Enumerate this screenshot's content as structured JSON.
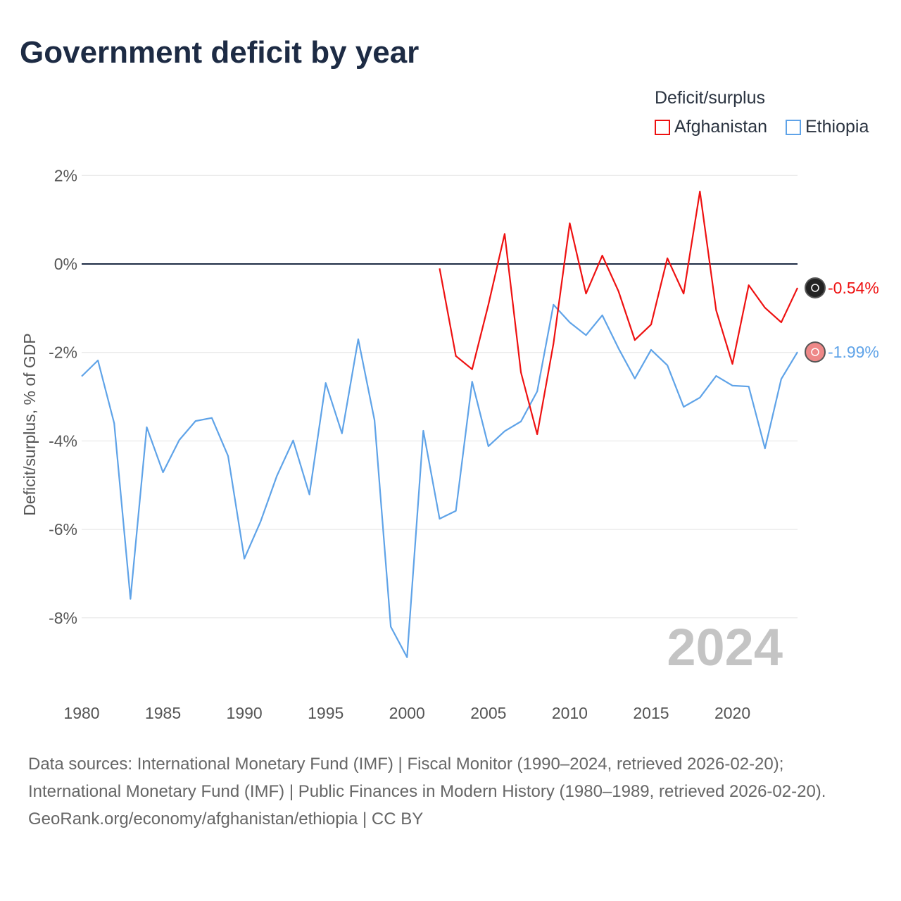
{
  "title": "Government deficit by year",
  "legend": {
    "title": "Deficit/surplus",
    "items": [
      {
        "label": "Afghanistan",
        "color": "#ee1111"
      },
      {
        "label": "Ethiopia",
        "color": "#5fa3e8"
      }
    ]
  },
  "footer": {
    "sources": "Data sources: International Monetary Fund (IMF) | Fiscal Monitor (1990–2024, retrieved 2026-02-20); International Monetary Fund (IMF) | Public Finances in Modern History (1980–1989, retrieved 2026-02-20).",
    "credit": "GeoRank.org/economy/afghanistan/ethiopia | CC BY"
  },
  "chart_data": {
    "type": "line",
    "title": "Government deficit by year",
    "ylabel": "Deficit/surplus, % of GDP",
    "xlabel": "",
    "xlim": [
      1980,
      2024
    ],
    "ylim": [
      -9.5,
      2.2
    ],
    "xticks": [
      1980,
      1985,
      1990,
      1995,
      2000,
      2005,
      2010,
      2015,
      2020
    ],
    "yticks": [
      2,
      0,
      -2,
      -4,
      -6,
      -8
    ],
    "ytick_labels": [
      "2%",
      "0%",
      "-2%",
      "-4%",
      "-6%",
      "-8%"
    ],
    "year_watermark": "2024",
    "series": [
      {
        "name": "Afghanistan",
        "color": "#ee1111",
        "end_label": "-0.54%",
        "x": [
          2002,
          2003,
          2004,
          2005,
          2006,
          2007,
          2008,
          2009,
          2010,
          2011,
          2012,
          2013,
          2014,
          2015,
          2016,
          2017,
          2018,
          2019,
          2020,
          2021,
          2022,
          2023,
          2024
        ],
        "values": [
          -0.1,
          -2.08,
          -2.38,
          -0.92,
          0.68,
          -2.45,
          -3.85,
          -1.8,
          0.92,
          -0.67,
          0.19,
          -0.62,
          -1.72,
          -1.37,
          0.13,
          -0.67,
          1.64,
          -1.05,
          -2.26,
          -0.48,
          -0.99,
          -1.32,
          -0.54
        ]
      },
      {
        "name": "Ethiopia",
        "color": "#5fa3e8",
        "end_label": "-1.99%",
        "x": [
          1980,
          1981,
          1982,
          1983,
          1984,
          1985,
          1986,
          1987,
          1988,
          1989,
          1990,
          1991,
          1992,
          1993,
          1994,
          1995,
          1996,
          1997,
          1998,
          1999,
          2000,
          2001,
          2002,
          2003,
          2004,
          2005,
          2006,
          2007,
          2008,
          2009,
          2010,
          2011,
          2012,
          2013,
          2014,
          2015,
          2016,
          2017,
          2018,
          2019,
          2020,
          2021,
          2022,
          2023,
          2024
        ],
        "values": [
          -2.54,
          -2.18,
          -3.6,
          -7.57,
          -3.69,
          -4.71,
          -3.98,
          -3.55,
          -3.48,
          -4.34,
          -6.66,
          -5.82,
          -4.79,
          -3.99,
          -5.21,
          -2.69,
          -3.83,
          -1.7,
          -3.53,
          -8.2,
          -8.89,
          -3.77,
          -5.76,
          -5.58,
          -2.66,
          -4.12,
          -3.78,
          -3.56,
          -2.88,
          -0.92,
          -1.32,
          -1.61,
          -1.16,
          -1.91,
          -2.59,
          -1.94,
          -2.29,
          -3.23,
          -3.02,
          -2.53,
          -2.75,
          -2.77,
          -4.17,
          -2.6,
          -1.99
        ]
      }
    ]
  }
}
